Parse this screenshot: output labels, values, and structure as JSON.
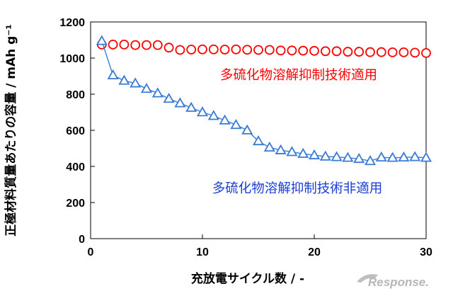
{
  "chart_data": {
    "type": "line",
    "ylabel": "正極材料質量あたりの容量 / mAh g⁻¹",
    "xlabel": "充放電サイクル数 / -",
    "xlim": [
      0,
      30
    ],
    "ylim": [
      0,
      1200
    ],
    "x_ticks": [
      0,
      10,
      20,
      30
    ],
    "y_ticks": [
      0,
      200,
      400,
      600,
      800,
      1000,
      1200
    ],
    "grid": false,
    "series": [
      {
        "name": "多硫化物溶解抑制技術適用",
        "marker": "circle",
        "color": "#ff0000",
        "line": false,
        "x": [
          1,
          2,
          3,
          4,
          5,
          6,
          7,
          8,
          9,
          10,
          11,
          12,
          13,
          14,
          15,
          16,
          17,
          18,
          19,
          20,
          21,
          22,
          23,
          24,
          25,
          26,
          27,
          28,
          29,
          30
        ],
        "values": [
          1075,
          1075,
          1075,
          1072,
          1072,
          1072,
          1058,
          1045,
          1047,
          1048,
          1048,
          1047,
          1048,
          1046,
          1045,
          1045,
          1042,
          1042,
          1041,
          1040,
          1038,
          1038,
          1035,
          1035,
          1033,
          1033,
          1032,
          1032,
          1030,
          1028
        ]
      },
      {
        "name": "多硫化物溶解抑制技術非適用",
        "marker": "triangle",
        "color": "#3a7bd5",
        "line": true,
        "x": [
          1,
          2,
          3,
          4,
          5,
          6,
          7,
          8,
          9,
          10,
          11,
          12,
          13,
          14,
          15,
          16,
          17,
          18,
          19,
          20,
          21,
          22,
          23,
          24,
          25,
          26,
          27,
          28,
          29,
          30
        ],
        "values": [
          1095,
          905,
          875,
          860,
          830,
          805,
          775,
          750,
          725,
          700,
          680,
          655,
          630,
          600,
          540,
          505,
          490,
          480,
          470,
          462,
          455,
          452,
          448,
          442,
          430,
          450,
          448,
          450,
          452,
          448
        ]
      }
    ],
    "annotations": [
      {
        "text": "多硫化物溶解抑制技術適用",
        "color": "#ff0000"
      },
      {
        "text": "多硫化物溶解抑制技術非適用",
        "color": "#1a3fd6"
      }
    ]
  },
  "watermark": {
    "text": "Response.",
    "color": "#b0b0b0"
  }
}
